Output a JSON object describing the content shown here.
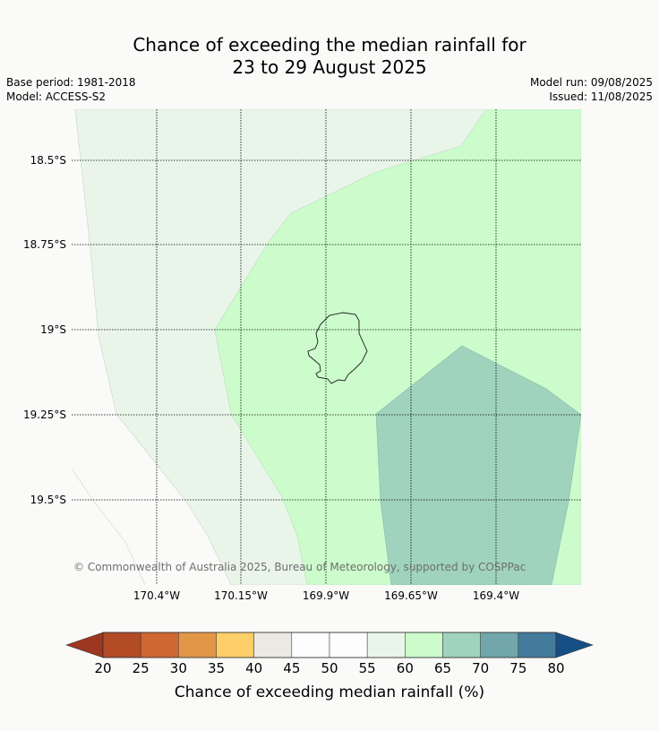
{
  "title": {
    "line1": "Chance of exceeding the median rainfall for",
    "line2": "23 to 29 August 2025"
  },
  "meta": {
    "base_period": "Base period: 1981-2018",
    "model": "Model: ACCESS-S2",
    "model_run": "Model run: 09/08/2025",
    "issued": "Issued: 11/08/2025"
  },
  "map": {
    "lat_labels": [
      "18.5°S",
      "18.75°S",
      "19°S",
      "19.25°S",
      "19.5°S"
    ],
    "lon_labels": [
      "170.4°W",
      "170.15°W",
      "169.9°W",
      "169.65°W",
      "169.4°W"
    ],
    "copyright": "© Commonwealth of Australia 2025, Bureau of Meteorology, supported by COSPPac",
    "zone_colors": {
      "50_55": "#fbfcfb",
      "55_60": "#eaf5ea",
      "60_65": "#ccfccc",
      "65_70": "#9fd3bd"
    }
  },
  "colorbar": {
    "ticks": [
      "20",
      "25",
      "30",
      "35",
      "40",
      "45",
      "50",
      "55",
      "60",
      "65",
      "70",
      "75",
      "80"
    ],
    "colors": [
      "#b24b26",
      "#cf6733",
      "#e29748",
      "#fece6a",
      "#ebe9e4",
      "#fdfdfd",
      "#fdfdfd",
      "#eaf5ea",
      "#ccfccc",
      "#9fd3bd",
      "#71a7aa",
      "#447a9c"
    ],
    "under_color": "#9d3720",
    "over_color": "#164f86",
    "label": "Chance of exceeding median rainfall (%)"
  }
}
